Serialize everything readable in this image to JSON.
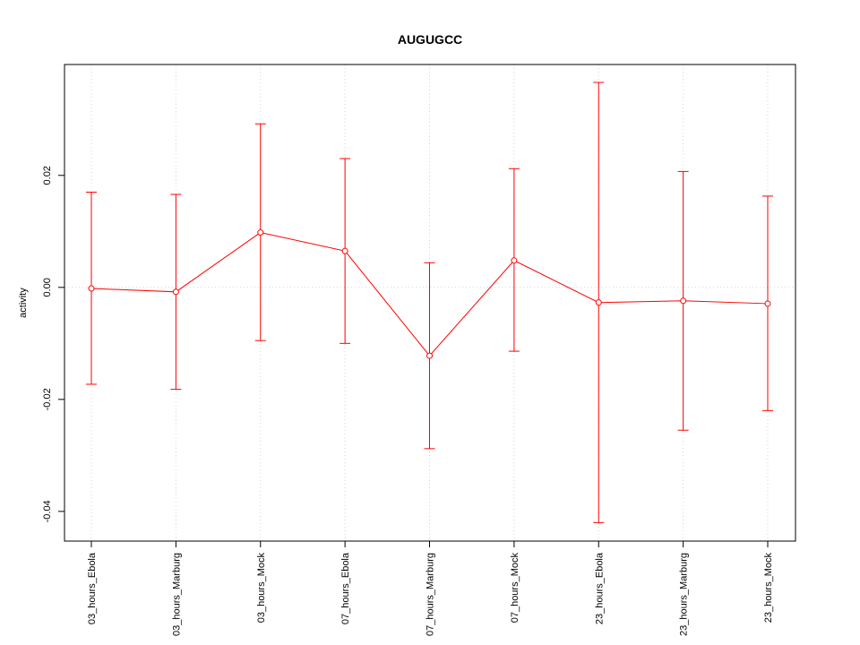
{
  "chart_data": {
    "type": "line",
    "title": "AUGUGCC",
    "xlabel": "",
    "ylabel": "activity",
    "categories": [
      "03_hours_Ebola",
      "03_hours_Marburg",
      "03_hours_Mock",
      "07_hours_Ebola",
      "07_hours_Marburg",
      "07_hours_Mock",
      "23_hours_Ebola",
      "23_hours_Marburg",
      "23_hours_Mock"
    ],
    "values": [
      -0.0002,
      -0.0008,
      0.0098,
      0.0065,
      -0.0122,
      0.0048,
      -0.0027,
      -0.0024,
      -0.0029
    ],
    "error_upper": [
      0.017,
      0.0166,
      0.0292,
      0.023,
      0.0044,
      0.0212,
      0.0366,
      0.0207,
      0.0163
    ],
    "error_lower": [
      -0.0173,
      -0.0182,
      -0.0095,
      -0.01,
      -0.0288,
      -0.0114,
      -0.042,
      -0.0255,
      -0.022
    ],
    "yticks": [
      -0.04,
      -0.02,
      0.0,
      0.02
    ],
    "ytick_labels": [
      "-0.04",
      "-0.02",
      "0.00",
      "0.02"
    ],
    "ylim": [
      -0.0453,
      0.0398
    ],
    "grid": true,
    "color": "#ff0000",
    "grid_color": "#d3d3d3"
  }
}
